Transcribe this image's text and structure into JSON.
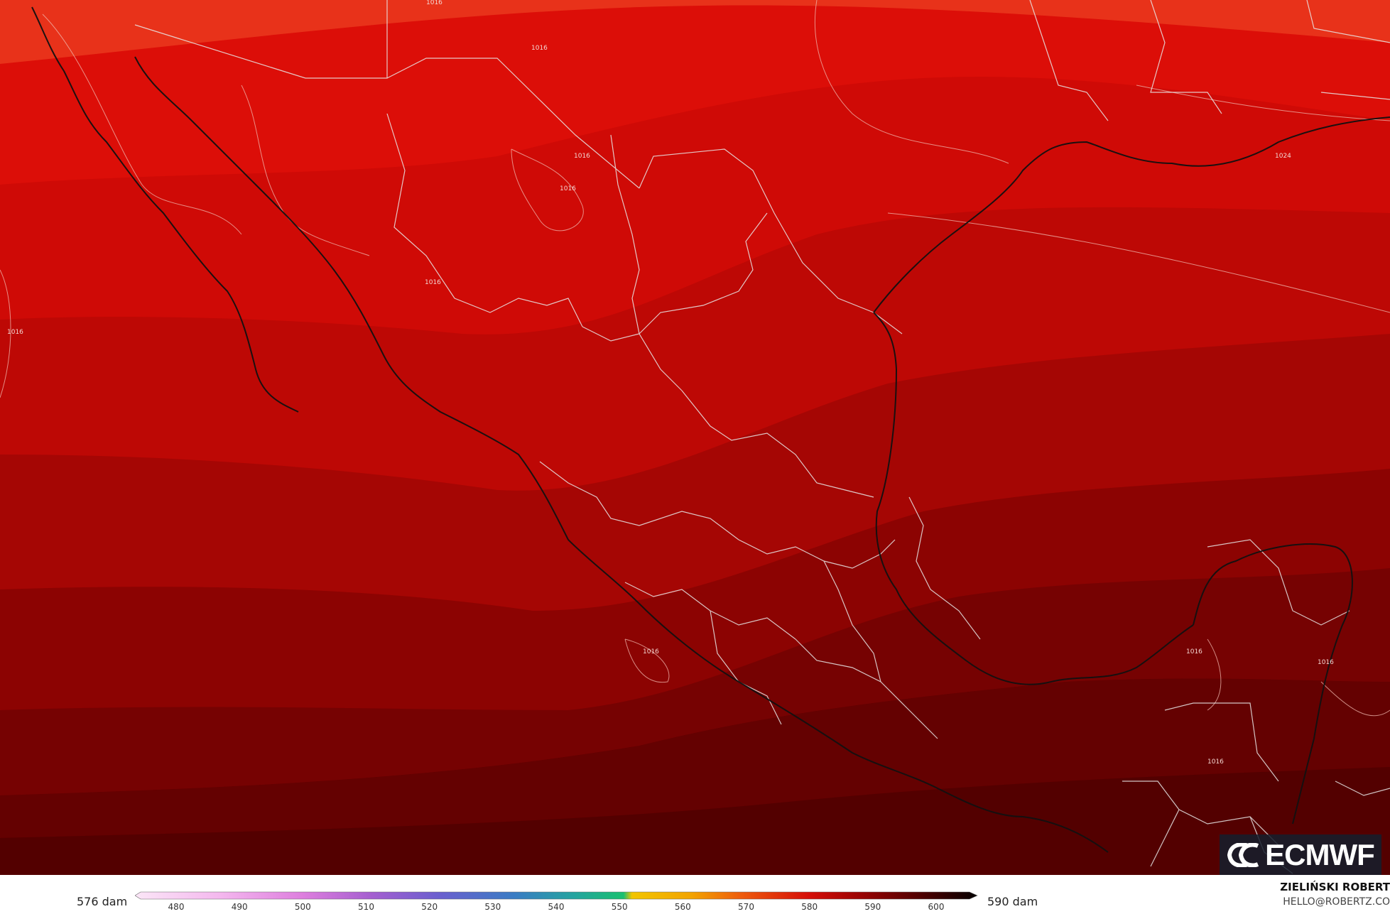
{
  "map": {
    "isobar_labels": [
      "1016",
      "1016",
      "1016",
      "1016",
      "1016",
      "1016",
      "1016",
      "1016",
      "1024",
      "1016",
      "1016"
    ]
  },
  "logo": {
    "text": "ECMWF",
    "icon": "ecmwf-logo-icon"
  },
  "legend": {
    "left_label": "576 dam",
    "right_label": "590 dam",
    "ticks": [
      "480",
      "490",
      "500",
      "510",
      "520",
      "530",
      "540",
      "550",
      "560",
      "570",
      "580",
      "590",
      "600"
    ],
    "colors": {
      "band_1": "#e8321a",
      "band_2": "#dc0e08",
      "band_3": "#cf0a06",
      "band_4": "#bd0805",
      "band_5": "#a50604",
      "band_6": "#8c0302",
      "band_7": "#760202",
      "band_8": "#640101",
      "band_9": "#530000"
    }
  },
  "author": {
    "name": "ZIELIŃSKI ROBERT",
    "email": "HELLO@ROBERTZ.CO"
  }
}
